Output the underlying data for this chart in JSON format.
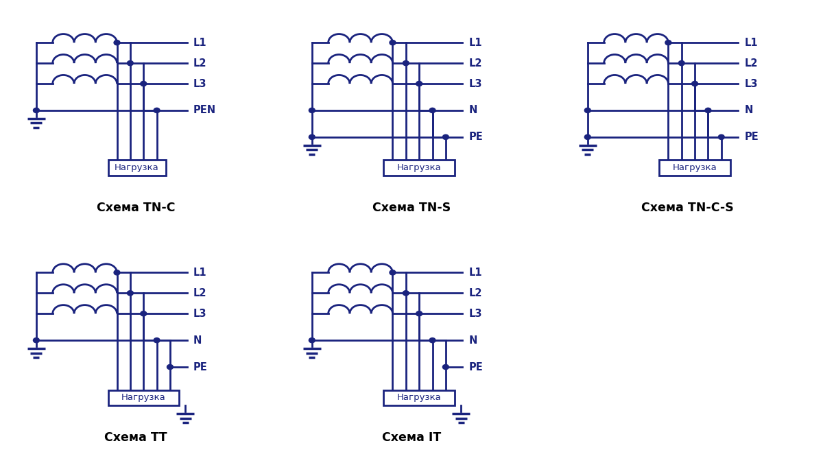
{
  "color": "#1a237e",
  "bg_color": "#ffffff",
  "lw": 2.0,
  "schemas": [
    {
      "title": "Схема TN-C",
      "labels": [
        "L1",
        "L2",
        "L3",
        "PEN"
      ],
      "type": "TNC"
    },
    {
      "title": "Схема TN-S",
      "labels": [
        "L1",
        "L2",
        "L3",
        "N",
        "PE"
      ],
      "type": "TNS"
    },
    {
      "title": "Схема TN-C-S",
      "labels": [
        "L1",
        "L2",
        "L3",
        "N",
        "PE"
      ],
      "type": "TNCS"
    },
    {
      "title": "Схема ТТ",
      "labels": [
        "L1",
        "L2",
        "L3",
        "N",
        "PE"
      ],
      "type": "TT"
    },
    {
      "title": "Схема IT",
      "labels": [
        "L1",
        "L2",
        "L3",
        "N",
        "PE"
      ],
      "type": "IT"
    }
  ]
}
